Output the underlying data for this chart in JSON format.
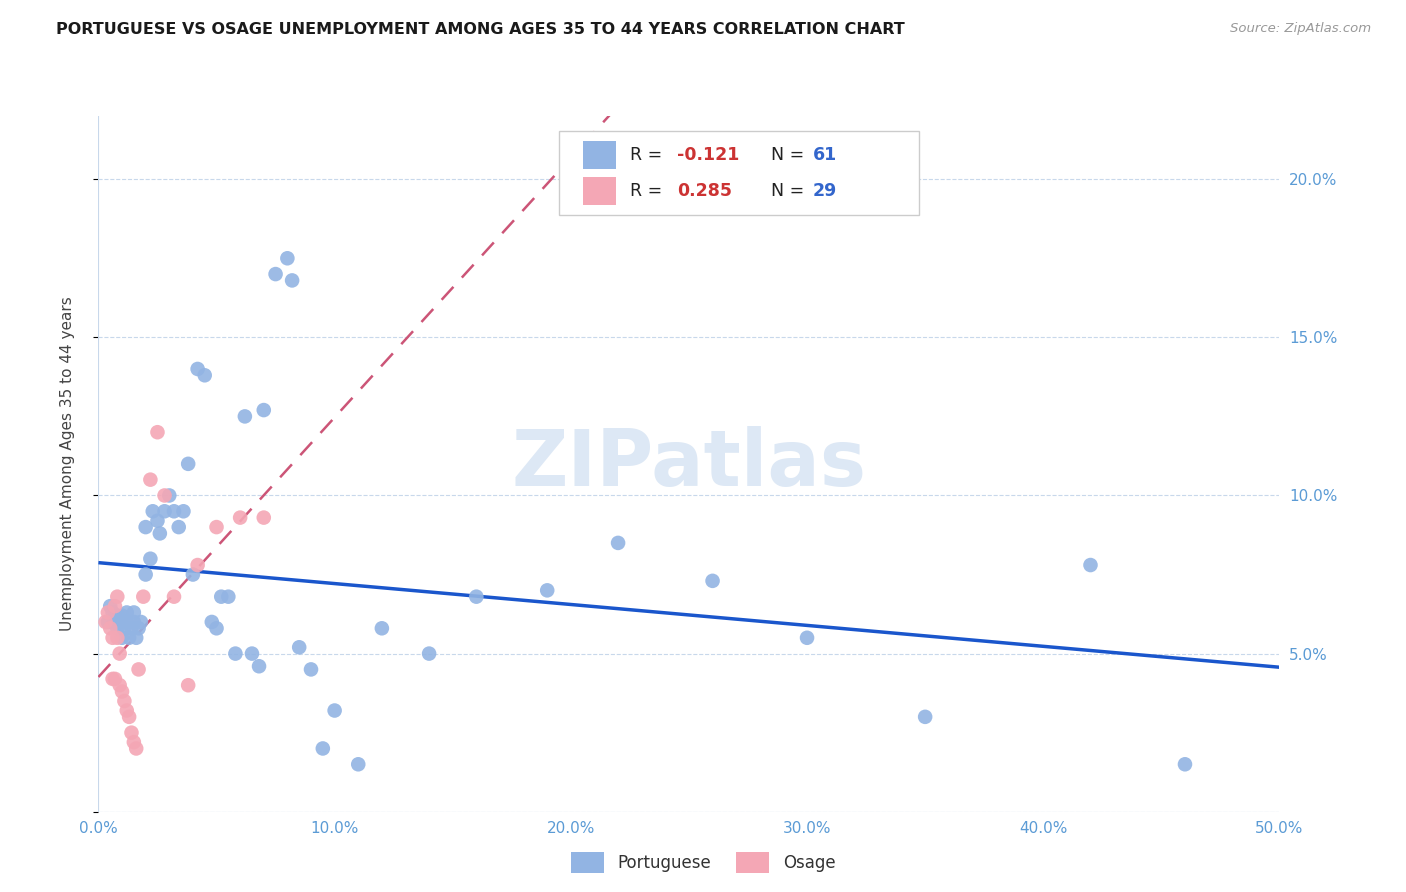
{
  "title": "PORTUGUESE VS OSAGE UNEMPLOYMENT AMONG AGES 35 TO 44 YEARS CORRELATION CHART",
  "source": "Source: ZipAtlas.com",
  "ylabel": "Unemployment Among Ages 35 to 44 years",
  "xlim": [
    0.0,
    0.5
  ],
  "ylim": [
    0.0,
    0.22
  ],
  "xticks": [
    0.0,
    0.1,
    0.2,
    0.3,
    0.4,
    0.5
  ],
  "xticklabels": [
    "0.0%",
    "10.0%",
    "20.0%",
    "30.0%",
    "40.0%",
    "50.0%"
  ],
  "yticks": [
    0.0,
    0.05,
    0.1,
    0.15,
    0.2
  ],
  "yticklabels_right": [
    "",
    "5.0%",
    "10.0%",
    "15.0%",
    "20.0%"
  ],
  "portuguese_color": "#92b4e3",
  "osage_color": "#f4a7b5",
  "portuguese_line_color": "#1a56cc",
  "osage_line_color": "#cc5577",
  "tick_color": "#5b9bd5",
  "watermark_text": "ZIPatlas",
  "watermark_color": "#dde8f5",
  "grid_color": "#c8d8eb",
  "legend_box_edge": "#cccccc",
  "legend_r1_color": "#cc3333",
  "legend_n1_color": "#3366cc",
  "legend_r2_color": "#cc3333",
  "legend_n2_color": "#3366cc",
  "portuguese_x": [
    0.004,
    0.005,
    0.006,
    0.007,
    0.008,
    0.008,
    0.009,
    0.01,
    0.01,
    0.011,
    0.012,
    0.012,
    0.013,
    0.014,
    0.015,
    0.015,
    0.016,
    0.017,
    0.018,
    0.02,
    0.02,
    0.022,
    0.023,
    0.025,
    0.026,
    0.028,
    0.03,
    0.032,
    0.034,
    0.036,
    0.038,
    0.04,
    0.042,
    0.045,
    0.048,
    0.05,
    0.052,
    0.055,
    0.058,
    0.062,
    0.065,
    0.068,
    0.07,
    0.075,
    0.08,
    0.082,
    0.085,
    0.09,
    0.095,
    0.1,
    0.11,
    0.12,
    0.14,
    0.16,
    0.19,
    0.22,
    0.26,
    0.3,
    0.35,
    0.42,
    0.46
  ],
  "portuguese_y": [
    0.06,
    0.065,
    0.063,
    0.06,
    0.058,
    0.062,
    0.06,
    0.055,
    0.062,
    0.058,
    0.06,
    0.063,
    0.055,
    0.058,
    0.06,
    0.063,
    0.055,
    0.058,
    0.06,
    0.075,
    0.09,
    0.08,
    0.095,
    0.092,
    0.088,
    0.095,
    0.1,
    0.095,
    0.09,
    0.095,
    0.11,
    0.075,
    0.14,
    0.138,
    0.06,
    0.058,
    0.068,
    0.068,
    0.05,
    0.125,
    0.05,
    0.046,
    0.127,
    0.17,
    0.175,
    0.168,
    0.052,
    0.045,
    0.02,
    0.032,
    0.015,
    0.058,
    0.05,
    0.068,
    0.07,
    0.085,
    0.073,
    0.055,
    0.03,
    0.078,
    0.015
  ],
  "osage_x": [
    0.003,
    0.004,
    0.005,
    0.006,
    0.006,
    0.007,
    0.007,
    0.008,
    0.008,
    0.009,
    0.009,
    0.01,
    0.011,
    0.012,
    0.013,
    0.014,
    0.015,
    0.016,
    0.017,
    0.019,
    0.022,
    0.025,
    0.028,
    0.032,
    0.038,
    0.042,
    0.05,
    0.06,
    0.07
  ],
  "osage_y": [
    0.06,
    0.063,
    0.058,
    0.055,
    0.042,
    0.065,
    0.042,
    0.068,
    0.055,
    0.05,
    0.04,
    0.038,
    0.035,
    0.032,
    0.03,
    0.025,
    0.022,
    0.02,
    0.045,
    0.068,
    0.105,
    0.12,
    0.1,
    0.068,
    0.04,
    0.078,
    0.09,
    0.093,
    0.093
  ]
}
